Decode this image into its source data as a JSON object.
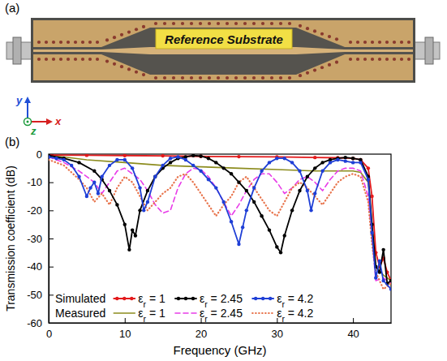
{
  "photo": {
    "panel_label": "(a)",
    "caption": "Reference Substrate",
    "axes": {
      "x": "x",
      "y": "y",
      "z": "z"
    }
  },
  "chart_data": {
    "panel_label": "(b)",
    "type": "line",
    "x_label": "Frequency (GHz)",
    "y_label": "Transmission coefficient (dB)",
    "xlim": [
      0,
      45
    ],
    "xticks": [
      0,
      10,
      20,
      30,
      40
    ],
    "ylim": [
      -60,
      0
    ],
    "yticks": [
      -60,
      -50,
      -40,
      -30,
      -20,
      -10,
      0
    ],
    "grid": false,
    "legend": "lower left",
    "series": [
      {
        "name": "εr = 1",
        "group": "Simulated",
        "color": "#e31a1c",
        "line_style": "solid",
        "marker": "circle",
        "x": [
          0,
          5,
          10,
          15,
          20,
          25,
          30,
          35,
          38,
          40,
          41,
          42,
          42.5,
          43,
          43.5,
          44,
          44.5,
          45
        ],
        "values": [
          -0.3,
          -0.4,
          -0.5,
          -0.6,
          -0.8,
          -0.9,
          -1,
          -1.2,
          -1.3,
          -1.5,
          -2,
          -5,
          -15,
          -35,
          -40,
          -37,
          -42,
          -45
        ]
      },
      {
        "name": "εr = 2.45",
        "group": "Simulated",
        "color": "#000000",
        "line_style": "solid",
        "marker": "circle",
        "x": [
          0,
          2,
          4,
          6,
          7,
          8,
          9,
          10,
          10.6,
          11,
          11.4,
          12,
          13,
          14,
          15,
          16,
          17,
          18,
          19,
          20,
          21,
          22,
          23,
          24,
          25,
          26,
          27,
          28,
          29,
          30,
          30.5,
          31,
          32,
          33,
          34,
          35,
          36,
          37,
          38,
          39,
          40,
          41,
          42,
          42.5,
          43,
          43.5,
          44,
          44.5,
          45
        ],
        "values": [
          -0.5,
          -1.5,
          -3,
          -6,
          -9,
          -13,
          -18,
          -25,
          -34,
          -27,
          -29,
          -20,
          -13,
          -8,
          -5,
          -3,
          -1.5,
          -1,
          -0.5,
          -0.7,
          -1.5,
          -3,
          -5,
          -7,
          -10,
          -13,
          -17,
          -22,
          -27,
          -33,
          -35,
          -29,
          -20,
          -13,
          -8,
          -5,
          -3,
          -2,
          -1.5,
          -1.2,
          -1.5,
          -2,
          -8,
          -25,
          -40,
          -42,
          -34,
          -46,
          -45
        ]
      },
      {
        "name": "εr = 4.2",
        "group": "Simulated",
        "color": "#1f3fd6",
        "line_style": "solid",
        "marker": "circle",
        "x": [
          0,
          1,
          2,
          3,
          4,
          5,
          5.5,
          6,
          6.5,
          7,
          8,
          9,
          10,
          11,
          12,
          12.5,
          13,
          14,
          15,
          16,
          17,
          18,
          19,
          20,
          21,
          22,
          23,
          24,
          25,
          25.5,
          26,
          27,
          28,
          29,
          30,
          31,
          32,
          33,
          34,
          34.5,
          35,
          36,
          37,
          38,
          39,
          40,
          41,
          42,
          42.5,
          43,
          43.5,
          44,
          45
        ],
        "values": [
          -1,
          -1.5,
          -2,
          -4,
          -8,
          -15,
          -12,
          -10,
          -14,
          -8,
          -4,
          -2,
          -2,
          -5,
          -12,
          -20,
          -17,
          -8,
          -4,
          -1.5,
          -1,
          -2,
          -4,
          -6,
          -9,
          -12,
          -17,
          -24,
          -32,
          -26,
          -20,
          -12,
          -6,
          -3,
          -1.5,
          -1.5,
          -3,
          -6,
          -13,
          -20,
          -14,
          -6,
          -3,
          -2,
          -2.5,
          -3,
          -3,
          -9,
          -28,
          -44,
          -38,
          -45,
          -48
        ]
      },
      {
        "name": "εr = 1",
        "group": "Measured",
        "color": "#8c8c1e",
        "line_style": "solid",
        "x": [
          0,
          2,
          5,
          10,
          15,
          20,
          25,
          30,
          35,
          40,
          41,
          42,
          42.5,
          43,
          44,
          45
        ],
        "values": [
          -0.5,
          -1,
          -2,
          -3,
          -4,
          -4.5,
          -5,
          -5.5,
          -6,
          -6,
          -6.5,
          -10,
          -25,
          -40,
          -43,
          -45
        ]
      },
      {
        "name": "εr = 2.45",
        "group": "Measured",
        "color": "#e83ce8",
        "line_style": "dashed",
        "x": [
          0,
          2,
          4,
          6,
          7,
          8,
          9,
          10,
          11,
          12,
          13,
          14,
          15,
          16,
          17,
          18,
          19,
          20,
          21,
          22,
          23,
          24,
          25,
          26,
          27,
          28,
          29,
          30,
          31,
          32,
          33,
          34,
          35,
          36,
          37,
          38,
          39,
          40,
          41,
          42,
          42.5,
          43,
          44,
          45
        ],
        "values": [
          -1,
          -3,
          -6,
          -10,
          -14,
          -10,
          -6,
          -5,
          -7,
          -9,
          -13,
          -18,
          -21,
          -20,
          -12,
          -7,
          -5,
          -5.5,
          -8,
          -12,
          -17,
          -22,
          -18,
          -13,
          -9,
          -7,
          -7,
          -10,
          -14,
          -12,
          -9,
          -8,
          -10,
          -13,
          -9,
          -6,
          -5,
          -5,
          -6,
          -15,
          -30,
          -45,
          -44,
          -46
        ]
      },
      {
        "name": "εr = 4.2",
        "group": "Measured",
        "color": "#e8744c",
        "line_style": "dotted",
        "x": [
          0,
          2,
          4,
          5,
          6,
          7,
          8,
          9,
          10,
          11,
          12,
          13,
          14,
          15,
          16,
          17,
          18,
          19,
          20,
          21,
          22,
          23,
          24,
          25,
          26,
          27,
          28,
          29,
          30,
          31,
          32,
          33,
          34,
          35,
          36,
          37,
          38,
          39,
          40,
          41,
          42,
          42.5,
          43,
          44,
          45
        ],
        "values": [
          -2,
          -4,
          -9,
          -12,
          -17,
          -14,
          -18,
          -12,
          -8,
          -10,
          -15,
          -20,
          -17,
          -14,
          -12,
          -8,
          -7,
          -10,
          -14,
          -18,
          -22,
          -18,
          -15,
          -10,
          -8,
          -12,
          -16,
          -20,
          -22,
          -17,
          -12,
          -10,
          -12,
          -15,
          -18,
          -14,
          -10,
          -8,
          -7,
          -8,
          -17,
          -32,
          -42,
          -48,
          -46
        ]
      }
    ]
  }
}
